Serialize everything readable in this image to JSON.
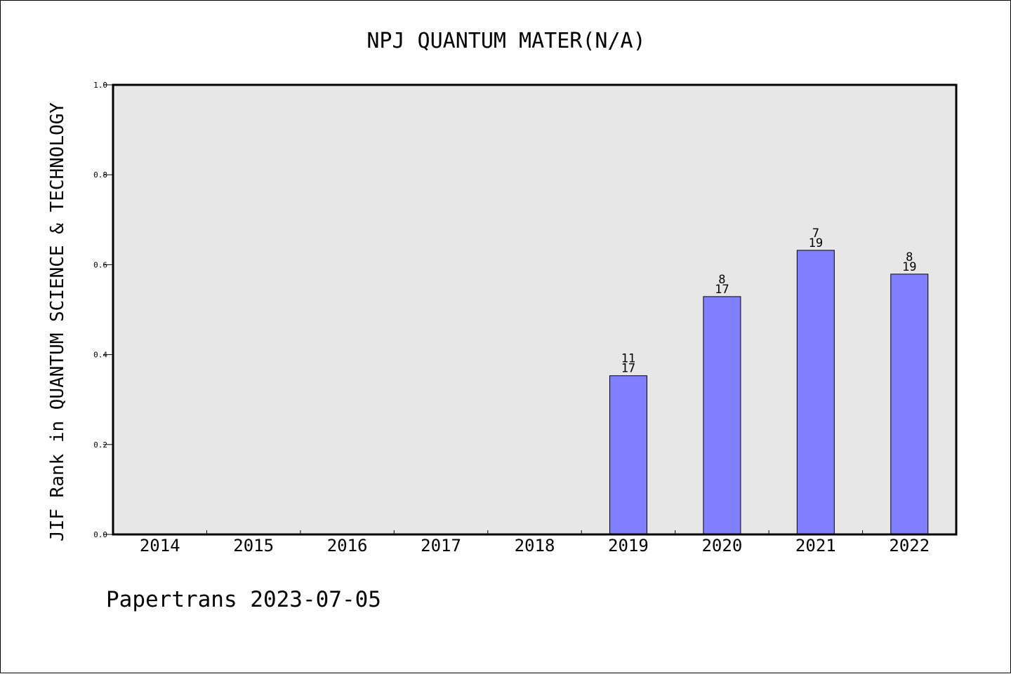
{
  "chart_data": {
    "type": "bar",
    "title": "NPJ QUANTUM MATER(N/A)",
    "xlabel": "",
    "ylabel": "JIF Rank in QUANTUM SCIENCE & TECHNOLOGY",
    "categories": [
      "2014",
      "2015",
      "2016",
      "2017",
      "2018",
      "2019",
      "2020",
      "2021",
      "2022"
    ],
    "values": [
      null,
      null,
      null,
      null,
      null,
      0.353,
      0.529,
      0.632,
      0.579
    ],
    "bar_labels": [
      null,
      null,
      null,
      null,
      null,
      {
        "rank": "11",
        "total": "17"
      },
      {
        "rank": "8",
        "total": "17"
      },
      {
        "rank": "7",
        "total": "19"
      },
      {
        "rank": "8",
        "total": "19"
      }
    ],
    "ylim": [
      0,
      1.0
    ],
    "yticks": [
      "0.0",
      "0.2",
      "0.4",
      "0.6",
      "0.8",
      "1.0"
    ],
    "grid": false,
    "legend": "none",
    "colors": {
      "bar_fill": "#8080ff",
      "plot_background": "#e7e7e7",
      "axis": "#000000"
    }
  },
  "footer": {
    "text": "Papertrans 2023-07-05"
  }
}
